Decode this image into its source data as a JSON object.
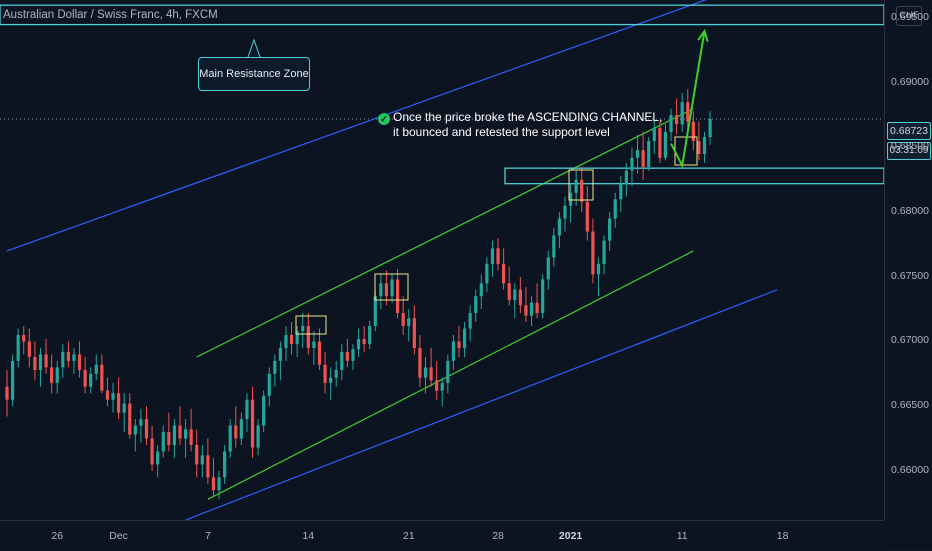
{
  "header": {
    "symbol": "Australian Dollar / Swiss Franc, 4h, FXCM"
  },
  "price_axis": {
    "currency": "CHF",
    "current_price": "0.68723",
    "countdown": "03:31:09"
  },
  "annotations": {
    "resistance_label": "Main Resistance Zone",
    "note_line1": "Once the price broke the ASCENDING CHANNEL,",
    "note_line2": "it bounced and retested the support level"
  },
  "colors": {
    "background": "#0c1422",
    "bull": "#26a69a",
    "bear": "#ef5350",
    "channel_green": "#3ecf2e",
    "channel_blue": "#2962ff",
    "zone_cyan": "#4dd0d8",
    "box_yellow": "#f0e68c",
    "arrow_green": "#3ecf2e"
  },
  "chart_data": {
    "type": "candlestick",
    "ylim": [
      0.6562,
      0.6964
    ],
    "y_ticks": [
      "0.69500",
      "0.69000",
      "0.68500",
      "0.68000",
      "0.67500",
      "0.67000",
      "0.66500",
      "0.66000"
    ],
    "y_tick_values": [
      0.695,
      0.69,
      0.685,
      0.68,
      0.675,
      0.67,
      0.665,
      0.66
    ],
    "x_ticks": [
      {
        "label": "26",
        "bar": 9
      },
      {
        "label": "Dec",
        "bar": 20
      },
      {
        "label": "7",
        "bar": 36
      },
      {
        "label": "14",
        "bar": 54
      },
      {
        "label": "21",
        "bar": 72
      },
      {
        "label": "28",
        "bar": 88
      },
      {
        "label": "2021",
        "bar": 101
      },
      {
        "label": "11",
        "bar": 121
      },
      {
        "label": "18",
        "bar": 139
      }
    ],
    "candles": [
      [
        0.6665,
        0.6678,
        0.6642,
        0.6655
      ],
      [
        0.6655,
        0.669,
        0.665,
        0.6685
      ],
      [
        0.6685,
        0.671,
        0.668,
        0.6705
      ],
      [
        0.6705,
        0.6712,
        0.669,
        0.67
      ],
      [
        0.67,
        0.671,
        0.668,
        0.6688
      ],
      [
        0.6688,
        0.67,
        0.667,
        0.6678
      ],
      [
        0.6678,
        0.6695,
        0.6665,
        0.669
      ],
      [
        0.669,
        0.6702,
        0.6675,
        0.668
      ],
      [
        0.668,
        0.669,
        0.666,
        0.6668
      ],
      [
        0.6668,
        0.6685,
        0.666,
        0.668
      ],
      [
        0.668,
        0.6698,
        0.6672,
        0.6692
      ],
      [
        0.6692,
        0.67,
        0.668,
        0.6685
      ],
      [
        0.6685,
        0.6695,
        0.6675,
        0.669
      ],
      [
        0.669,
        0.67,
        0.6672,
        0.6678
      ],
      [
        0.6678,
        0.6688,
        0.666,
        0.6665
      ],
      [
        0.6665,
        0.668,
        0.666,
        0.6675
      ],
      [
        0.6675,
        0.669,
        0.667,
        0.6682
      ],
      [
        0.6682,
        0.669,
        0.666,
        0.6662
      ],
      [
        0.6662,
        0.6672,
        0.665,
        0.6655
      ],
      [
        0.6655,
        0.6668,
        0.6645,
        0.666
      ],
      [
        0.666,
        0.6672,
        0.664,
        0.6645
      ],
      [
        0.6645,
        0.666,
        0.663,
        0.6652
      ],
      [
        0.6652,
        0.666,
        0.6625,
        0.6628
      ],
      [
        0.6628,
        0.664,
        0.6615,
        0.6635
      ],
      [
        0.6635,
        0.6648,
        0.6622,
        0.664
      ],
      [
        0.664,
        0.665,
        0.662,
        0.6625
      ],
      [
        0.6625,
        0.6635,
        0.66,
        0.6605
      ],
      [
        0.6605,
        0.662,
        0.6595,
        0.6615
      ],
      [
        0.6615,
        0.6635,
        0.661,
        0.663
      ],
      [
        0.663,
        0.6645,
        0.6615,
        0.662
      ],
      [
        0.662,
        0.664,
        0.661,
        0.6635
      ],
      [
        0.6635,
        0.665,
        0.662,
        0.6625
      ],
      [
        0.6625,
        0.664,
        0.661,
        0.6632
      ],
      [
        0.6632,
        0.6648,
        0.6615,
        0.662
      ],
      [
        0.662,
        0.6632,
        0.6595,
        0.6605
      ],
      [
        0.6605,
        0.662,
        0.6595,
        0.6612
      ],
      [
        0.6612,
        0.6625,
        0.659,
        0.6595
      ],
      [
        0.6595,
        0.661,
        0.658,
        0.6585
      ],
      [
        0.6585,
        0.66,
        0.6578,
        0.6595
      ],
      [
        0.6595,
        0.662,
        0.659,
        0.6615
      ],
      [
        0.6615,
        0.664,
        0.661,
        0.6635
      ],
      [
        0.6635,
        0.665,
        0.6618,
        0.6625
      ],
      [
        0.6625,
        0.6645,
        0.662,
        0.664
      ],
      [
        0.664,
        0.666,
        0.663,
        0.6655
      ],
      [
        0.6655,
        0.6665,
        0.661,
        0.6618
      ],
      [
        0.6618,
        0.664,
        0.6612,
        0.6635
      ],
      [
        0.6635,
        0.6662,
        0.663,
        0.6658
      ],
      [
        0.6658,
        0.668,
        0.665,
        0.6675
      ],
      [
        0.6675,
        0.669,
        0.6665,
        0.6685
      ],
      [
        0.6685,
        0.67,
        0.667,
        0.6695
      ],
      [
        0.6695,
        0.6712,
        0.6685,
        0.6705
      ],
      [
        0.6705,
        0.6715,
        0.669,
        0.6698
      ],
      [
        0.6698,
        0.6712,
        0.6688,
        0.6708
      ],
      [
        0.6708,
        0.6722,
        0.6695,
        0.6712
      ],
      [
        0.6712,
        0.6722,
        0.669,
        0.6695
      ],
      [
        0.6695,
        0.6708,
        0.6682,
        0.67
      ],
      [
        0.67,
        0.671,
        0.6678,
        0.6682
      ],
      [
        0.6682,
        0.6692,
        0.666,
        0.6668
      ],
      [
        0.6668,
        0.668,
        0.6655,
        0.6672
      ],
      [
        0.6672,
        0.6685,
        0.6665,
        0.6678
      ],
      [
        0.6678,
        0.6698,
        0.667,
        0.6692
      ],
      [
        0.6692,
        0.6702,
        0.668,
        0.6685
      ],
      [
        0.6685,
        0.6698,
        0.6678,
        0.6694
      ],
      [
        0.6694,
        0.671,
        0.6688,
        0.6702
      ],
      [
        0.6702,
        0.6712,
        0.6692,
        0.6698
      ],
      [
        0.6698,
        0.6716,
        0.6694,
        0.6712
      ],
      [
        0.6712,
        0.674,
        0.6708,
        0.6735
      ],
      [
        0.6735,
        0.6752,
        0.6725,
        0.6745
      ],
      [
        0.6745,
        0.6755,
        0.6728,
        0.6735
      ],
      [
        0.6735,
        0.6752,
        0.673,
        0.6748
      ],
      [
        0.6748,
        0.6756,
        0.6718,
        0.6722
      ],
      [
        0.6722,
        0.6735,
        0.6705,
        0.6712
      ],
      [
        0.6712,
        0.6725,
        0.67,
        0.6718
      ],
      [
        0.6718,
        0.6728,
        0.669,
        0.6695
      ],
      [
        0.6695,
        0.6705,
        0.6665,
        0.6672
      ],
      [
        0.6672,
        0.6688,
        0.666,
        0.668
      ],
      [
        0.668,
        0.6695,
        0.6665,
        0.667
      ],
      [
        0.667,
        0.6685,
        0.6655,
        0.6662
      ],
      [
        0.6662,
        0.6672,
        0.665,
        0.6668
      ],
      [
        0.6668,
        0.669,
        0.666,
        0.6685
      ],
      [
        0.6685,
        0.6705,
        0.6678,
        0.67
      ],
      [
        0.67,
        0.6712,
        0.6688,
        0.6695
      ],
      [
        0.6695,
        0.6715,
        0.6688,
        0.671
      ],
      [
        0.671,
        0.6728,
        0.67,
        0.6722
      ],
      [
        0.6722,
        0.674,
        0.6715,
        0.6735
      ],
      [
        0.6735,
        0.6752,
        0.6725,
        0.6745
      ],
      [
        0.6745,
        0.6765,
        0.6738,
        0.676
      ],
      [
        0.676,
        0.6778,
        0.675,
        0.6772
      ],
      [
        0.6772,
        0.678,
        0.6755,
        0.676
      ],
      [
        0.676,
        0.6772,
        0.674,
        0.6745
      ],
      [
        0.6745,
        0.6758,
        0.6728,
        0.6732
      ],
      [
        0.6732,
        0.6745,
        0.6718,
        0.674
      ],
      [
        0.674,
        0.675,
        0.6722,
        0.6728
      ],
      [
        0.6728,
        0.6742,
        0.6715,
        0.672
      ],
      [
        0.672,
        0.6735,
        0.6712,
        0.673
      ],
      [
        0.673,
        0.6745,
        0.6718,
        0.6722
      ],
      [
        0.6722,
        0.6752,
        0.6718,
        0.6748
      ],
      [
        0.6748,
        0.677,
        0.674,
        0.6765
      ],
      [
        0.6765,
        0.6788,
        0.6758,
        0.6782
      ],
      [
        0.6782,
        0.68,
        0.6772,
        0.6795
      ],
      [
        0.6795,
        0.6812,
        0.6785,
        0.6805
      ],
      [
        0.6805,
        0.6822,
        0.6792,
        0.6815
      ],
      [
        0.6815,
        0.6832,
        0.6805,
        0.6825
      ],
      [
        0.6825,
        0.6835,
        0.68,
        0.6808
      ],
      [
        0.6808,
        0.682,
        0.6778,
        0.6785
      ],
      [
        0.6785,
        0.6795,
        0.6745,
        0.6752
      ],
      [
        0.6752,
        0.6765,
        0.6735,
        0.676
      ],
      [
        0.676,
        0.6782,
        0.6752,
        0.6778
      ],
      [
        0.6778,
        0.68,
        0.677,
        0.6795
      ],
      [
        0.6795,
        0.6815,
        0.6788,
        0.681
      ],
      [
        0.681,
        0.6828,
        0.68,
        0.6822
      ],
      [
        0.6822,
        0.6838,
        0.6812,
        0.6832
      ],
      [
        0.6832,
        0.685,
        0.682,
        0.6842
      ],
      [
        0.6842,
        0.686,
        0.683,
        0.6848
      ],
      [
        0.6848,
        0.6862,
        0.6825,
        0.6835
      ],
      [
        0.6835,
        0.6858,
        0.6832,
        0.6855
      ],
      [
        0.6855,
        0.6872,
        0.6845,
        0.6865
      ],
      [
        0.6865,
        0.687,
        0.6838,
        0.6842
      ],
      [
        0.6842,
        0.6868,
        0.684,
        0.6862
      ],
      [
        0.6862,
        0.688,
        0.6855,
        0.6875
      ],
      [
        0.6875,
        0.6888,
        0.686,
        0.6868
      ],
      [
        0.6868,
        0.6892,
        0.6862,
        0.6885
      ],
      [
        0.6885,
        0.6895,
        0.6862,
        0.687
      ],
      [
        0.687,
        0.6878,
        0.6848,
        0.6855
      ],
      [
        0.6855,
        0.687,
        0.684,
        0.6845
      ],
      [
        0.6845,
        0.6862,
        0.6838,
        0.6858
      ],
      [
        0.6858,
        0.6878,
        0.6852,
        0.6872
      ]
    ],
    "trendlines": {
      "upper_channel": {
        "from": [
          34,
          0.6688
        ],
        "to": [
          123,
          0.688
        ]
      },
      "lower_channel": {
        "from": [
          36,
          0.6578
        ],
        "to": [
          123,
          0.677
        ]
      },
      "outer_upper_blue": {
        "from": [
          0,
          0.677
        ],
        "to": [
          129,
          0.697
        ]
      },
      "outer_lower_blue": {
        "from": [
          32,
          0.6562
        ],
        "to": [
          138,
          0.674
        ]
      }
    },
    "zones": {
      "main_resistance": [
        0.6945,
        0.696
      ],
      "support": [
        0.6822,
        0.6834
      ]
    },
    "projection": [
      [
        119,
        0.6853
      ],
      [
        121,
        0.6836
      ],
      [
        125,
        0.694
      ]
    ]
  }
}
